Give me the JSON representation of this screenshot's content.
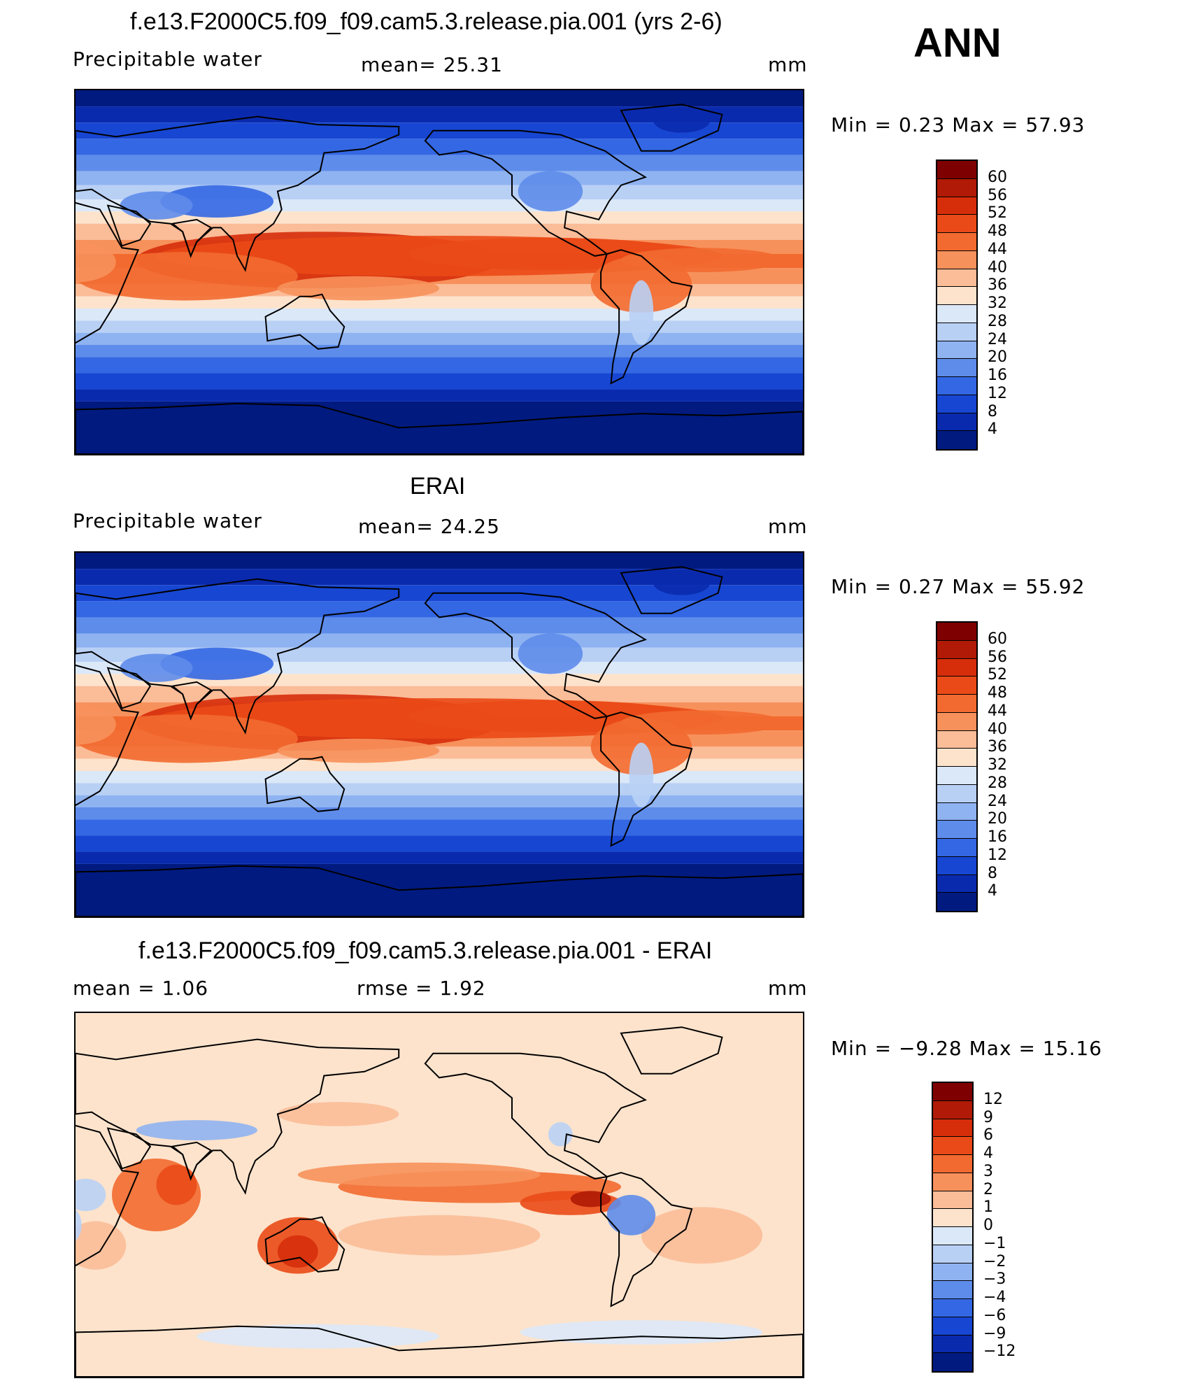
{
  "season": "ANN",
  "panels": [
    {
      "title": "f.e13.F2000C5.f09_f09.cam5.3.release.pia.001 (yrs 2-6)",
      "left_label": "Precipitable  water",
      "center_label": "mean=   25.31",
      "units": "mm",
      "min_max": "Min  =     0.23  Max  =    57.93",
      "kind": "field",
      "levels": [
        "60",
        "56",
        "52",
        "48",
        "44",
        "40",
        "36",
        "32",
        "28",
        "24",
        "20",
        "16",
        "12",
        "8",
        "4"
      ],
      "colors": [
        "#7f0000",
        "#b01a06",
        "#d62d0b",
        "#ea4a17",
        "#f26a30",
        "#f7915b",
        "#fbbc98",
        "#fde3cc",
        "#dbe8f8",
        "#b9d0f5",
        "#8fb3f1",
        "#5e8cea",
        "#3467e3",
        "#1746d2",
        "#0a2aae",
        "#001a80"
      ]
    },
    {
      "title": "ERAI",
      "left_label": "Precipitable  water",
      "center_label": "mean=   24.25",
      "units": "mm",
      "min_max": "Min  =     0.27  Max  =    55.92",
      "kind": "field",
      "levels": [
        "60",
        "56",
        "52",
        "48",
        "44",
        "40",
        "36",
        "32",
        "28",
        "24",
        "20",
        "16",
        "12",
        "8",
        "4"
      ],
      "colors": [
        "#7f0000",
        "#b01a06",
        "#d62d0b",
        "#ea4a17",
        "#f26a30",
        "#f7915b",
        "#fbbc98",
        "#fde3cc",
        "#dbe8f8",
        "#b9d0f5",
        "#8fb3f1",
        "#5e8cea",
        "#3467e3",
        "#1746d2",
        "#0a2aae",
        "#001a80"
      ]
    },
    {
      "title": "f.e13.F2000C5.f09_f09.cam5.3.release.pia.001 - ERAI",
      "left_label": "mean  =      1.06",
      "center_label": "rmse  =      1.92",
      "units": "mm",
      "min_max": "Min  =   −9.28  Max  =    15.16",
      "kind": "diff",
      "levels": [
        "12",
        "9",
        "6",
        "4",
        "3",
        "2",
        "1",
        "0",
        "−1",
        "−2",
        "−3",
        "−4",
        "−6",
        "−9",
        "−12"
      ],
      "colors": [
        "#7f0000",
        "#b01a06",
        "#d62d0b",
        "#ea4a17",
        "#f26a30",
        "#f7915b",
        "#fbbc98",
        "#fde3cc",
        "#dbe8f8",
        "#b9d0f5",
        "#8fb3f1",
        "#5e8cea",
        "#3467e3",
        "#1746d2",
        "#0a2aae",
        "#001a80"
      ]
    }
  ]
}
